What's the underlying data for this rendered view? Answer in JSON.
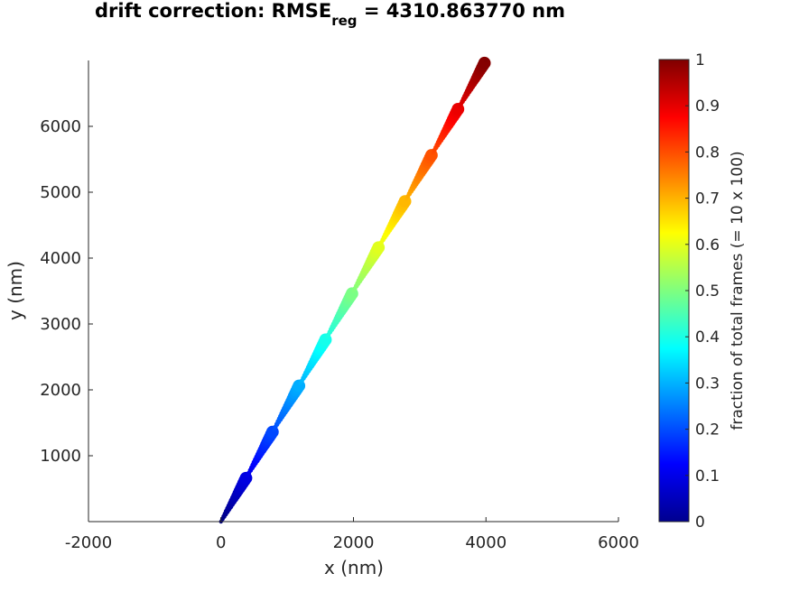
{
  "chart_data": {
    "type": "scatter",
    "title_main": "drift correction: RMSE",
    "title_sub": "reg",
    "title_value": " = 4310.863770 nm",
    "xlabel": "x (nm)",
    "ylabel": "y (nm)",
    "xlim": [
      -2000,
      6000
    ],
    "ylim": [
      0,
      7000
    ],
    "xticks": [
      -2000,
      0,
      2000,
      4000,
      6000
    ],
    "yticks": [
      1000,
      2000,
      3000,
      4000,
      5000,
      6000
    ],
    "colormap": "jet",
    "series": [
      {
        "x_start": 0,
        "y_start": 0,
        "x_end": 4000,
        "y_end": 7000,
        "segments": 10,
        "color_start_fraction": 0,
        "color_end_fraction": 1
      }
    ],
    "colorbar": {
      "label": "fraction of total frames (= 10 x 100)",
      "range": [
        0,
        1
      ],
      "ticks": [
        "0",
        "0.1",
        "0.2",
        "0.3",
        "0.4",
        "0.5",
        "0.6",
        "0.7",
        "0.8",
        "0.9",
        "1"
      ]
    }
  }
}
